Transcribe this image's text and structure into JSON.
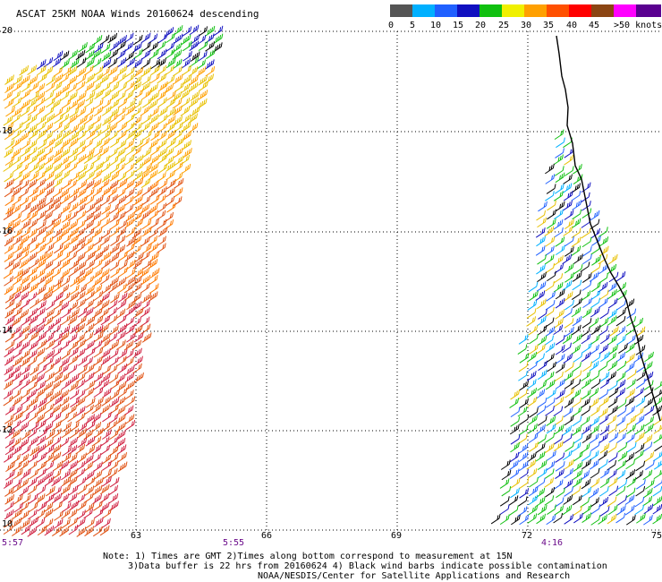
{
  "title": "ASCAT 25KM NOAA Winds 20160624 descending",
  "legend": {
    "labels": [
      "0",
      "5",
      "10",
      "15",
      "20",
      "25",
      "30",
      "35",
      "40",
      "45",
      ">50 knots"
    ],
    "colors": [
      "#555555",
      "#00b0ff",
      "#2060ff",
      "#1010c0",
      "#10c010",
      "#f0f000",
      "#ffa000",
      "#ff5000",
      "#ff0000",
      "#8b4513",
      "#ff00ff",
      "#5a0090"
    ]
  },
  "axes": {
    "lat_labels": [
      "20",
      "18",
      "16",
      "14",
      "12",
      "10"
    ],
    "lon_labels": [
      "63",
      "66",
      "69",
      "72",
      "75"
    ]
  },
  "times": [
    "5:57",
    "5:55",
    "4:16"
  ],
  "notes": {
    "line1": "Note: 1) Times are GMT 2)Times along bottom correspond to measurement at 15N",
    "line2": "3)Data buffer is 22 hrs from 20160624 4) Black wind barbs indicate possible contamination",
    "line3": "NOAA/NESDIS/Center for Satellite Applications and Research"
  }
}
